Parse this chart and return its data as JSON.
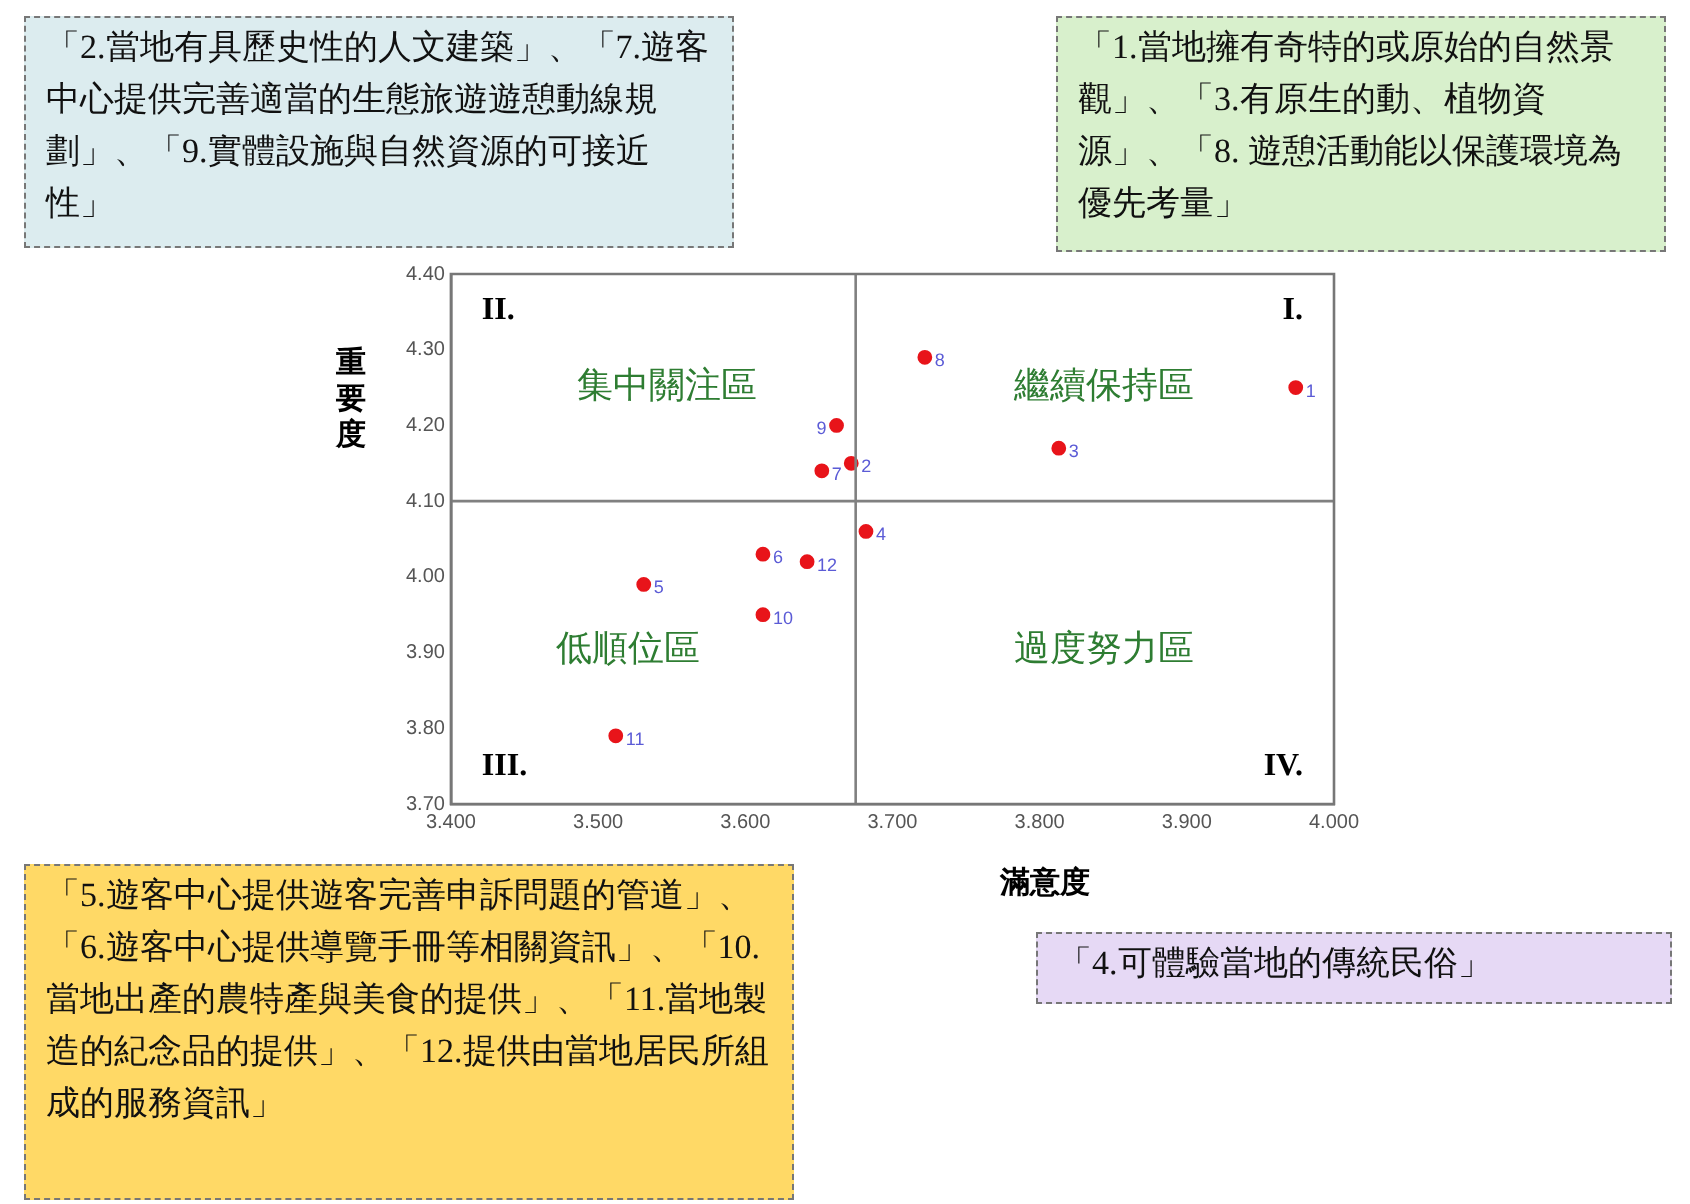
{
  "chart_data": {
    "type": "scatter",
    "xlabel": "滿意度",
    "ylabel": "重要度",
    "xlim": [
      3.4,
      4.0
    ],
    "ylim": [
      3.7,
      4.4
    ],
    "xticks": [
      {
        "value": 3.4,
        "label": "3.400"
      },
      {
        "value": 3.5,
        "label": "3.500"
      },
      {
        "value": 3.6,
        "label": "3.600"
      },
      {
        "value": 3.7,
        "label": "3.700"
      },
      {
        "value": 3.8,
        "label": "3.800"
      },
      {
        "value": 3.9,
        "label": "3.900"
      },
      {
        "value": 4.0,
        "label": "4.000"
      }
    ],
    "yticks": [
      {
        "value": 3.7,
        "label": "3.70"
      },
      {
        "value": 3.8,
        "label": "3.80"
      },
      {
        "value": 3.9,
        "label": "3.90"
      },
      {
        "value": 4.0,
        "label": "4.00"
      },
      {
        "value": 4.1,
        "label": "4.10"
      },
      {
        "value": 4.2,
        "label": "4.20"
      },
      {
        "value": 4.3,
        "label": "4.30"
      },
      {
        "value": 4.4,
        "label": "4.40"
      }
    ],
    "series": [
      {
        "color": "#e8141a",
        "x": [
          3.974,
          3.672,
          3.813,
          3.682,
          3.531,
          3.612,
          3.652,
          3.722,
          3.662,
          3.612,
          3.512,
          3.642
        ],
        "values": [
          4.25,
          4.15,
          4.17,
          4.06,
          3.99,
          4.03,
          4.14,
          4.29,
          4.2,
          3.95,
          3.79,
          4.02
        ]
      }
    ],
    "ref_lines": [
      {
        "axis": "x",
        "value": 3.675,
        "color": "#808080"
      },
      {
        "axis": "y",
        "value": 4.1,
        "color": "#808080"
      }
    ],
    "grid": false,
    "legend": false,
    "marker": "circle",
    "annotations": [
      "「2.當地有具歷史性的人文建築」、「7.遊客中心提供完善適當的生態旅遊遊憩動線規劃」、「9.實體設施與自然資源的可接近性」",
      "「1.當地擁有奇特的或原始的自然景觀」、「3.有原生的動、植物資源」、「8. 遊憩活動能以保護環境為優先考量」",
      "「5.遊客中心提供遊客完善申訴問題的管道」、「6.遊客中心提供導覽手冊等相關資訊」、「10.當地出產的農特產與美食的提供」、「11.當地製造的紀念品的提供」、「12.提供由當地居民所組成的服務資訊」",
      "「4.可體驗當地的傳統民俗」",
      "II.",
      "I.",
      "III.",
      "IV.",
      "集中關注區",
      "繼續保持區",
      "低順位區",
      "過度努力區",
      {
        "text": "1",
        "x": 3.974,
        "y": 4.25
      },
      {
        "text": "2",
        "x": 3.672,
        "y": 4.15
      },
      {
        "text": "3",
        "x": 3.813,
        "y": 4.17
      },
      {
        "text": "4",
        "x": 3.682,
        "y": 4.06
      },
      {
        "text": "5",
        "x": 3.531,
        "y": 3.99
      },
      {
        "text": "6",
        "x": 3.612,
        "y": 4.03
      },
      {
        "text": "7",
        "x": 3.652,
        "y": 4.14
      },
      {
        "text": "8",
        "x": 3.722,
        "y": 4.29
      },
      {
        "text": "9",
        "x": 3.662,
        "y": 4.2
      },
      {
        "text": "10",
        "x": 3.612,
        "y": 3.95
      },
      {
        "text": "11",
        "x": 3.512,
        "y": 3.79
      },
      {
        "text": "12",
        "x": 3.642,
        "y": 4.02
      }
    ]
  }
}
